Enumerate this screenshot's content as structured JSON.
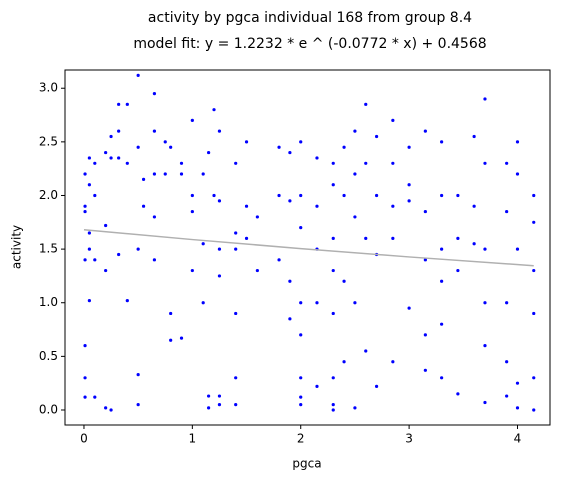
{
  "chart_data": {
    "type": "scatter",
    "title": "activity by pgca individual 168 from group 8.4",
    "subtitle": "model fit: y = 1.2232 * e ^ (-0.0772 * x) + 0.4568",
    "x_label": "pgca",
    "y_label": "activity",
    "xlim": [
      -0.175,
      4.3
    ],
    "ylim": [
      -0.14,
      3.17
    ],
    "xticks": [
      0,
      1,
      2,
      3,
      4
    ],
    "yticks": [
      {
        "value": 0,
        "label": "0.0"
      },
      0.5,
      {
        "value": 1,
        "label": "1.0"
      },
      1.5,
      {
        "value": 2,
        "label": "2.0"
      },
      2.5,
      {
        "value": 3,
        "label": "3.0"
      }
    ],
    "series": [
      {
        "color": "#0000ff",
        "x": [
          0.01,
          0.01,
          0.01,
          0.01,
          0.01,
          0.01,
          0.01,
          0.05,
          0.05,
          0.05,
          0.05,
          0.05,
          0.1,
          0.1,
          0.1,
          0.1,
          0.2,
          0.2,
          0.2,
          0.2,
          0.25,
          0.25,
          0.25,
          0.32,
          0.32,
          0.32,
          0.32,
          0.4,
          0.4,
          0.4,
          0.5,
          0.5,
          0.5,
          0.5,
          0.5,
          0.55,
          0.55,
          0.65,
          0.65,
          0.65,
          0.65,
          0.65,
          0.75,
          0.75,
          0.8,
          0.8,
          0.8,
          0.9,
          0.9,
          0.9,
          1.0,
          1.0,
          1.0,
          1.0,
          1.1,
          1.1,
          1.1,
          1.15,
          1.15,
          1.15,
          1.2,
          1.2,
          1.25,
          1.25,
          1.25,
          1.25,
          1.25,
          1.25,
          1.4,
          1.4,
          1.4,
          1.4,
          1.4,
          1.4,
          1.5,
          1.5,
          1.5,
          1.6,
          1.6,
          1.8,
          1.8,
          1.8,
          1.9,
          1.9,
          1.9,
          1.9,
          2.0,
          2.0,
          2.0,
          2.0,
          2.0,
          2.0,
          2.0,
          2.0,
          2.15,
          2.15,
          2.15,
          2.15,
          2.15,
          2.3,
          2.3,
          2.3,
          2.3,
          2.3,
          2.3,
          2.3,
          2.3,
          2.4,
          2.4,
          2.4,
          2.4,
          2.5,
          2.5,
          2.5,
          2.5,
          2.5,
          2.6,
          2.6,
          2.6,
          2.6,
          2.7,
          2.7,
          2.7,
          2.7,
          2.85,
          2.85,
          2.85,
          2.85,
          2.85,
          3.0,
          3.0,
          3.0,
          3.0,
          3.15,
          3.15,
          3.15,
          3.15,
          3.15,
          3.3,
          3.3,
          3.3,
          3.3,
          3.3,
          3.3,
          3.45,
          3.45,
          3.45,
          3.45,
          3.6,
          3.6,
          3.6,
          3.7,
          3.7,
          3.7,
          3.7,
          3.7,
          3.7,
          3.9,
          3.9,
          3.9,
          3.9,
          3.9,
          4.0,
          4.0,
          4.0,
          4.0,
          4.0,
          4.15,
          4.15,
          4.15,
          4.15,
          4.15,
          4.15
        ],
        "y": [
          1.4,
          1.9,
          2.2,
          0.6,
          0.3,
          1.85,
          0.12,
          2.35,
          2.1,
          1.5,
          1.02,
          1.65,
          2.3,
          1.4,
          0.12,
          2.0,
          2.4,
          1.72,
          0.02,
          1.3,
          2.55,
          2.35,
          0.0,
          2.6,
          2.85,
          2.35,
          1.45,
          2.85,
          2.3,
          1.02,
          3.12,
          2.45,
          1.5,
          0.33,
          0.05,
          2.15,
          1.9,
          2.95,
          2.6,
          2.2,
          1.4,
          1.8,
          2.5,
          2.2,
          0.9,
          0.65,
          2.45,
          2.3,
          2.2,
          0.67,
          2.7,
          2.0,
          1.3,
          1.85,
          2.2,
          1.55,
          1.0,
          2.4,
          0.13,
          0.02,
          2.8,
          2.0,
          2.6,
          1.95,
          1.5,
          1.25,
          0.13,
          0.05,
          2.3,
          1.65,
          1.5,
          0.9,
          0.3,
          0.05,
          2.5,
          1.9,
          1.6,
          1.8,
          1.3,
          2.45,
          2.0,
          1.4,
          2.4,
          1.95,
          1.2,
          0.85,
          2.5,
          2.0,
          1.7,
          1.0,
          0.7,
          0.3,
          0.05,
          0.12,
          2.35,
          1.9,
          1.5,
          1.0,
          0.22,
          2.3,
          2.1,
          1.6,
          1.3,
          0.9,
          0.3,
          0.0,
          0.05,
          2.45,
          2.0,
          1.2,
          0.45,
          2.6,
          2.2,
          1.8,
          1.0,
          0.02,
          2.85,
          2.3,
          1.6,
          0.55,
          2.55,
          2.0,
          1.45,
          0.22,
          2.7,
          2.3,
          1.9,
          1.6,
          0.45,
          2.45,
          2.1,
          1.95,
          0.95,
          2.6,
          1.85,
          1.4,
          0.7,
          0.37,
          2.5,
          2.0,
          1.5,
          1.2,
          0.8,
          0.3,
          2.0,
          1.6,
          0.15,
          1.3,
          2.55,
          1.55,
          1.9,
          2.9,
          2.3,
          1.5,
          1.0,
          0.6,
          0.07,
          2.3,
          1.85,
          1.0,
          0.45,
          0.13,
          2.5,
          2.2,
          1.5,
          0.25,
          0.02,
          2.0,
          1.75,
          1.3,
          0.9,
          0.3,
          0.0
        ]
      },
      {
        "color": "#b0b0b0",
        "style": "line",
        "x": [
          0,
          1,
          2,
          3,
          4.15
        ],
        "y": [
          1.68,
          1.589,
          1.505,
          1.427,
          1.345
        ]
      }
    ]
  }
}
